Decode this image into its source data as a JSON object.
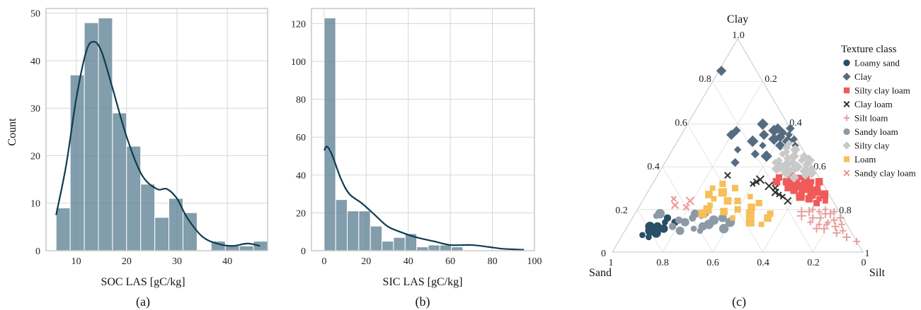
{
  "chart_data": [
    {
      "type": "bar",
      "panel_label": "(a)",
      "xlabel": "SOC LAS [gC/kg]",
      "ylabel": "Count",
      "xlim": [
        4,
        48
      ],
      "ylim": [
        0,
        51
      ],
      "xticks": [
        "10",
        "20",
        "30",
        "40"
      ],
      "yticks": [
        "0",
        "10",
        "20",
        "30",
        "40",
        "50"
      ],
      "bin_edges": [
        6,
        8.8,
        11.6,
        14.4,
        17.2,
        20,
        22.8,
        25.6,
        28.4,
        31.2,
        34,
        36.8,
        39.6,
        42.4,
        45.2,
        48
      ],
      "values": [
        9,
        37,
        48,
        49,
        29,
        22,
        14,
        7,
        11,
        8,
        0,
        2,
        1,
        1,
        2
      ],
      "kde": [
        [
          6,
          7.5
        ],
        [
          8,
          18
        ],
        [
          10,
          32
        ],
        [
          12,
          42
        ],
        [
          13.5,
          44
        ],
        [
          15,
          42
        ],
        [
          17,
          35
        ],
        [
          20,
          24
        ],
        [
          23,
          16
        ],
        [
          26,
          13
        ],
        [
          28,
          13
        ],
        [
          30,
          11
        ],
        [
          32,
          7
        ],
        [
          35,
          3
        ],
        [
          38,
          1.5
        ],
        [
          41,
          1
        ],
        [
          44,
          1.5
        ],
        [
          46.5,
          1
        ]
      ]
    },
    {
      "type": "bar",
      "panel_label": "(b)",
      "xlabel": "SIC LAS [gC/kg]",
      "ylabel": "",
      "xlim": [
        -6,
        100
      ],
      "ylim": [
        0,
        128
      ],
      "xticks": [
        "0",
        "20",
        "40",
        "60",
        "80",
        "100"
      ],
      "yticks": [
        "0",
        "20",
        "40",
        "60",
        "80",
        "100",
        "120"
      ],
      "bin_edges": [
        0,
        5.5,
        11,
        16.5,
        22,
        27.5,
        33,
        38.5,
        44,
        49.5,
        55,
        60.5,
        66,
        71.5,
        77,
        82.5
      ],
      "values": [
        123,
        27,
        21,
        21,
        13,
        5,
        7,
        9,
        2,
        3,
        3,
        2,
        0,
        0,
        0
      ],
      "kde": [
        [
          0,
          53
        ],
        [
          1.5,
          55
        ],
        [
          4,
          50
        ],
        [
          8,
          38
        ],
        [
          12,
          30
        ],
        [
          18,
          25
        ],
        [
          24,
          19
        ],
        [
          30,
          13
        ],
        [
          36,
          10
        ],
        [
          44,
          7
        ],
        [
          52,
          5
        ],
        [
          60,
          3
        ],
        [
          70,
          3
        ],
        [
          78,
          2
        ],
        [
          85,
          1
        ],
        [
          95,
          0.5
        ]
      ]
    },
    {
      "type": "scatter",
      "subtype": "ternary",
      "panel_label": "(c)",
      "axis_labels": {
        "top": "Clay",
        "left": "Sand",
        "right": "Silt"
      },
      "clay_ticks": [
        "0",
        "0.2",
        "0.4",
        "0.6",
        "0.8",
        "1.0"
      ],
      "sand_ticks": [
        "1",
        "0.8",
        "0.6",
        "0.4",
        "0.2",
        "0"
      ],
      "silt_ticks": [
        "0.2",
        "0.4",
        "0.6",
        "0.8",
        "1"
      ],
      "legend_title": "Texture class",
      "legend_placement": "right",
      "series": [
        {
          "name": "Loamy sand",
          "marker": "circle",
          "color": "#274f66",
          "points": [
            [
              0.84,
              0.08
            ],
            [
              0.8,
              0.1
            ],
            [
              0.76,
              0.12
            ],
            [
              0.7,
              0.16
            ],
            [
              0.72,
              0.14
            ],
            [
              0.78,
              0.09
            ],
            [
              0.74,
              0.11
            ],
            [
              0.68,
              0.14
            ],
            [
              0.82,
              0.07
            ],
            [
              0.79,
              0.12
            ]
          ]
        },
        {
          "name": "Clay",
          "marker": "diamond",
          "color": "#546b80",
          "points": [
            [
              0.1,
              0.6
            ],
            [
              0.05,
              0.58
            ],
            [
              0.0,
              0.58
            ],
            [
              0.02,
              0.55
            ],
            [
              0.04,
              0.52
            ],
            [
              0.25,
              0.55
            ],
            [
              0.22,
              0.57
            ],
            [
              0.15,
              0.5
            ],
            [
              0.18,
              0.52
            ],
            [
              0.08,
              0.5
            ],
            [
              0.04,
              0.56
            ],
            [
              0.01,
              0.53
            ],
            [
              0.07,
              0.57
            ],
            [
              0.12,
              0.55
            ],
            [
              0.2,
              0.46
            ],
            [
              0.26,
              0.48
            ],
            [
              0.16,
              0.45
            ],
            [
              0.14,
              0.85
            ],
            [
              0.3,
              0.42
            ],
            [
              0.02,
              0.5
            ],
            [
              0.09,
              0.53
            ],
            [
              0.06,
              0.54
            ]
          ]
        },
        {
          "name": "Silty clay loam",
          "marker": "square",
          "color": "#f05a5a",
          "points": [
            [
              0.12,
              0.34
            ],
            [
              0.1,
              0.33
            ],
            [
              0.08,
              0.35
            ],
            [
              0.06,
              0.31
            ],
            [
              0.05,
              0.29
            ],
            [
              0.04,
              0.28
            ],
            [
              0.1,
              0.29
            ],
            [
              0.12,
              0.31
            ],
            [
              0.14,
              0.33
            ],
            [
              0.16,
              0.35
            ],
            [
              0.03,
              0.3
            ],
            [
              0.07,
              0.27
            ],
            [
              0.09,
              0.25
            ],
            [
              0.11,
              0.27
            ],
            [
              0.05,
              0.25
            ],
            [
              0.02,
              0.27
            ],
            [
              0.13,
              0.29
            ],
            [
              0.15,
              0.3
            ],
            [
              0.08,
              0.29
            ],
            [
              0.06,
              0.34
            ],
            [
              0.01,
              0.33
            ],
            [
              0.1,
              0.37
            ],
            [
              0.04,
              0.33
            ],
            [
              0.12,
              0.26
            ],
            [
              0.18,
              0.33
            ],
            [
              0.07,
              0.23
            ],
            [
              0.03,
              0.24
            ],
            [
              0.09,
              0.31
            ]
          ]
        },
        {
          "name": "Clay loam",
          "marker": "x",
          "color": "#333333",
          "points": [
            [
              0.36,
              0.36
            ],
            [
              0.28,
              0.32
            ],
            [
              0.22,
              0.31
            ],
            [
              0.21,
              0.28
            ],
            [
              0.2,
              0.3
            ],
            [
              0.19,
              0.26
            ],
            [
              0.24,
              0.34
            ],
            [
              0.18,
              0.24
            ],
            [
              0.26,
              0.33
            ],
            [
              0.2,
              0.27
            ]
          ]
        },
        {
          "name": "Silt loam",
          "marker": "plus",
          "color": "#e8a0a0",
          "points": [
            [
              0.1,
              0.2
            ],
            [
              0.06,
              0.18
            ],
            [
              0.12,
              0.16
            ],
            [
              0.04,
              0.15
            ],
            [
              0.08,
              0.13
            ],
            [
              0.1,
              0.11
            ],
            [
              0.05,
              0.12
            ],
            [
              0.02,
              0.13
            ],
            [
              0.14,
              0.14
            ],
            [
              0.16,
              0.17
            ],
            [
              0.06,
              0.09
            ],
            [
              0.03,
              0.1
            ],
            [
              0.08,
              0.19
            ],
            [
              0.12,
              0.19
            ],
            [
              0.01,
              0.16
            ],
            [
              0.0,
              0.05
            ],
            [
              0.07,
              0.14
            ],
            [
              0.04,
              0.18
            ],
            [
              0.13,
              0.11
            ],
            [
              0.09,
              0.16
            ],
            [
              0.11,
              0.13
            ],
            [
              0.15,
              0.19
            ],
            [
              0.03,
              0.07
            ],
            [
              0.02,
              0.19
            ],
            [
              0.05,
              0.2
            ]
          ]
        },
        {
          "name": "Sandy loam",
          "marker": "circle",
          "color": "#8d9aa6",
          "points": [
            [
              0.72,
              0.18
            ],
            [
              0.64,
              0.14
            ],
            [
              0.6,
              0.16
            ],
            [
              0.56,
              0.17
            ],
            [
              0.52,
              0.15
            ],
            [
              0.58,
              0.12
            ],
            [
              0.7,
              0.12
            ],
            [
              0.62,
              0.11
            ],
            [
              0.55,
              0.13
            ],
            [
              0.48,
              0.16
            ],
            [
              0.66,
              0.15
            ],
            [
              0.74,
              0.17
            ],
            [
              0.5,
              0.11
            ],
            [
              0.68,
              0.1
            ],
            [
              0.54,
              0.18
            ],
            [
              0.6,
              0.1
            ],
            [
              0.46,
              0.14
            ],
            [
              0.58,
              0.18
            ]
          ]
        },
        {
          "name": "Silty clay",
          "marker": "diamond",
          "color": "#c9c9c9",
          "points": [
            [
              0.05,
              0.45
            ],
            [
              0.08,
              0.44
            ],
            [
              0.03,
              0.43
            ],
            [
              0.1,
              0.41
            ],
            [
              0.06,
              0.4
            ],
            [
              0.02,
              0.41
            ],
            [
              0.12,
              0.43
            ],
            [
              0.04,
              0.38
            ],
            [
              0.08,
              0.39
            ],
            [
              0.01,
              0.45
            ],
            [
              0.07,
              0.47
            ],
            [
              0.11,
              0.38
            ],
            [
              0.03,
              0.48
            ],
            [
              0.06,
              0.49
            ],
            [
              0.09,
              0.46
            ],
            [
              0.13,
              0.4
            ],
            [
              0.02,
              0.37
            ],
            [
              0.05,
              0.36
            ],
            [
              0.14,
              0.42
            ],
            [
              0.0,
              0.43
            ],
            [
              0.1,
              0.35
            ],
            [
              0.07,
              0.42
            ],
            [
              0.04,
              0.51
            ],
            [
              0.12,
              0.37
            ],
            [
              0.15,
              0.39
            ],
            [
              0.01,
              0.39
            ]
          ]
        },
        {
          "name": "Loam",
          "marker": "square",
          "color": "#f6bf58",
          "points": [
            [
              0.4,
              0.32
            ],
            [
              0.45,
              0.3
            ],
            [
              0.42,
              0.28
            ],
            [
              0.48,
              0.27
            ],
            [
              0.38,
              0.24
            ],
            [
              0.5,
              0.22
            ],
            [
              0.52,
              0.2
            ],
            [
              0.46,
              0.19
            ],
            [
              0.4,
              0.2
            ],
            [
              0.44,
              0.16
            ],
            [
              0.36,
              0.18
            ],
            [
              0.34,
              0.21
            ],
            [
              0.3,
              0.23
            ],
            [
              0.32,
              0.26
            ],
            [
              0.38,
              0.14
            ],
            [
              0.3,
              0.16
            ],
            [
              0.28,
              0.18
            ],
            [
              0.34,
              0.13
            ],
            [
              0.55,
              0.18
            ],
            [
              0.42,
              0.24
            ],
            [
              0.36,
              0.3
            ],
            [
              0.47,
              0.25
            ]
          ]
        },
        {
          "name": "Sandy clay loam",
          "marker": "x",
          "color": "#ef9393",
          "points": [
            [
              0.63,
              0.25
            ],
            [
              0.57,
              0.24
            ],
            [
              0.64,
              0.22
            ],
            [
              0.6,
              0.21
            ]
          ]
        }
      ]
    }
  ]
}
